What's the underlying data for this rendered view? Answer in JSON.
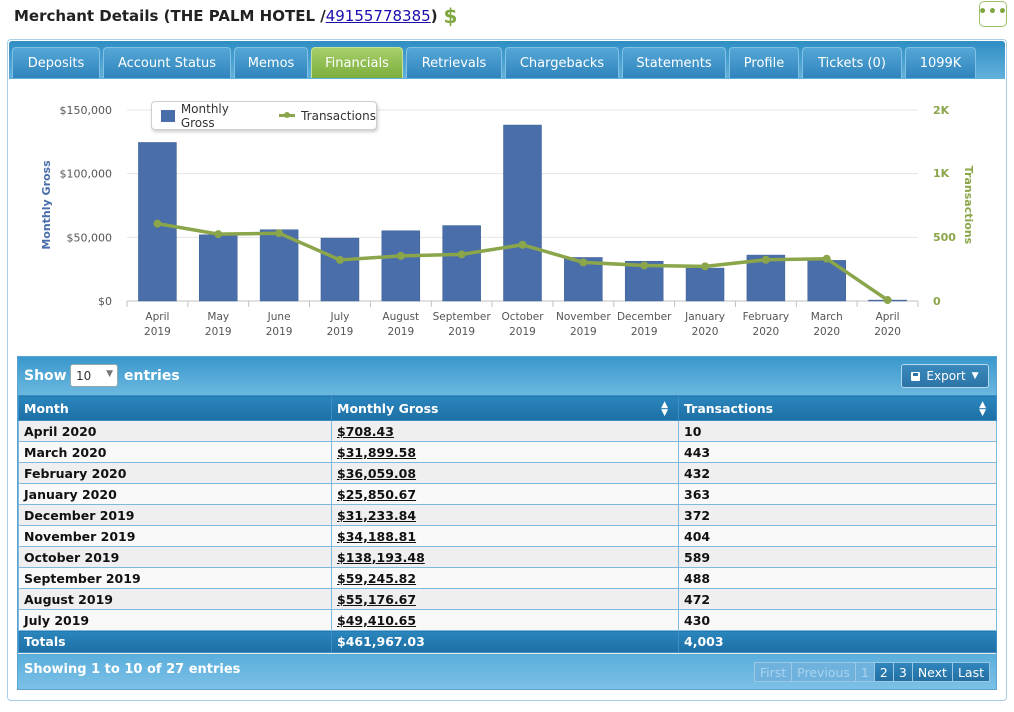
{
  "header": {
    "title_prefix": "Merchant Details (THE PALM HOTEL / ",
    "merchant_id": "49155778385",
    "title_suffix": ")",
    "dollar_icon": "$",
    "menu_icon": "•••"
  },
  "tabs": [
    {
      "label": "Deposits",
      "active": false
    },
    {
      "label": "Account Status",
      "active": false
    },
    {
      "label": "Memos",
      "active": false
    },
    {
      "label": "Financials",
      "active": true
    },
    {
      "label": "Retrievals",
      "active": false
    },
    {
      "label": "Chargebacks",
      "active": false
    },
    {
      "label": "Statements",
      "active": false
    },
    {
      "label": "Profile",
      "active": false
    },
    {
      "label": "Tickets (0)",
      "active": false
    },
    {
      "label": "1099K",
      "active": false
    }
  ],
  "chart_data": {
    "type": "bar",
    "categories": [
      [
        "April",
        "2019"
      ],
      [
        "May",
        "2019"
      ],
      [
        "June",
        "2019"
      ],
      [
        "July",
        "2019"
      ],
      [
        "August",
        "2019"
      ],
      [
        "September",
        "2019"
      ],
      [
        "October",
        "2019"
      ],
      [
        "November",
        "2019"
      ],
      [
        "December",
        "2019"
      ],
      [
        "January",
        "2020"
      ],
      [
        "February",
        "2020"
      ],
      [
        "March",
        "2020"
      ],
      [
        "April",
        "2020"
      ]
    ],
    "series": [
      {
        "name": "Monthly Gross",
        "type": "bar",
        "axis": "left",
        "color": "#4a6ea9",
        "values": [
          124500,
          52000,
          56000,
          49410.65,
          55176.67,
          59245.82,
          138193.48,
          34188.81,
          31233.84,
          25850.67,
          36059.08,
          31899.58,
          708.43
        ]
      },
      {
        "name": "Transactions",
        "type": "line",
        "axis": "right",
        "color": "#8aa54a",
        "values": [
          810,
          700,
          710,
          430,
          472,
          488,
          589,
          404,
          372,
          363,
          432,
          443,
          10
        ]
      }
    ],
    "ylabel": "Monthly Gross",
    "y2label": "Transactions",
    "ylim": [
      0,
      150000
    ],
    "y2lim": [
      0,
      2000
    ],
    "yticks": [
      "$0",
      "$50,000",
      "$100,000",
      "$150,000"
    ],
    "y2ticks": [
      "0",
      "500",
      "1K",
      "2K"
    ],
    "legend": "top-left",
    "grid": true
  },
  "table": {
    "show_label": "Show",
    "page_size": "10",
    "entries_label": "entries",
    "export_label": "Export",
    "columns": [
      "Month",
      "Monthly Gross",
      "Transactions"
    ],
    "rows": [
      [
        "April 2020",
        "$708.43",
        "10"
      ],
      [
        "March 2020",
        "$31,899.58",
        "443"
      ],
      [
        "February 2020",
        "$36,059.08",
        "432"
      ],
      [
        "January 2020",
        "$25,850.67",
        "363"
      ],
      [
        "December 2019",
        "$31,233.84",
        "372"
      ],
      [
        "November 2019",
        "$34,188.81",
        "404"
      ],
      [
        "October 2019",
        "$138,193.48",
        "589"
      ],
      [
        "September 2019",
        "$59,245.82",
        "488"
      ],
      [
        "August 2019",
        "$55,176.67",
        "472"
      ],
      [
        "July 2019",
        "$49,410.65",
        "430"
      ]
    ],
    "totals": [
      "Totals",
      "$461,967.03",
      "4,003"
    ],
    "info": "Showing 1 to 10 of 27 entries",
    "pager": {
      "first": "First",
      "previous": "Previous",
      "pages": [
        "1",
        "2",
        "3"
      ],
      "current": "1",
      "next": "Next",
      "last": "Last"
    }
  }
}
